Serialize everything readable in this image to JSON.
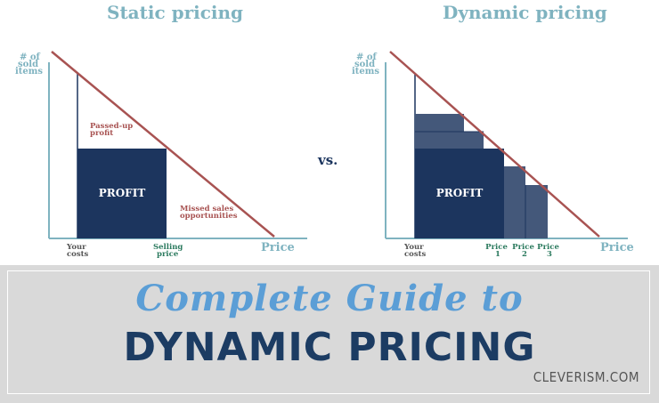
{
  "static": {
    "title": "Static pricing",
    "y_axis_label": [
      "# of",
      "sold",
      "items"
    ],
    "x_axis_label": "Price",
    "costs_label": [
      "Your",
      "costs"
    ],
    "selling_label": [
      "Selling",
      "price"
    ],
    "passed_label": [
      "Passed-up",
      "profit"
    ],
    "missed_label": [
      "Missed sales",
      "opportunities"
    ],
    "profit_label": "PROFIT"
  },
  "dynamic": {
    "title": "Dynamic pricing",
    "y_axis_label": [
      "# of",
      "sold",
      "items"
    ],
    "x_axis_label": "Price",
    "costs_label": [
      "Your",
      "costs"
    ],
    "price_labels": [
      [
        "Price",
        "1"
      ],
      [
        "Price",
        "2"
      ],
      [
        "Price",
        "3"
      ]
    ],
    "profit_label": "PROFIT"
  },
  "vs_label": "vs.",
  "banner": {
    "script_title": "Complete Guide to",
    "main_title": "DYNAMIC PRICING",
    "site": "CLEVERISM.COM"
  },
  "colors": {
    "axis": "#7fb3c0",
    "demand_line": "#a85352",
    "profit": "#1c355e",
    "profit_light": "#44587a",
    "label_dark": "#555555",
    "label_price": "#2b7a5e",
    "label_red": "#a85352"
  }
}
